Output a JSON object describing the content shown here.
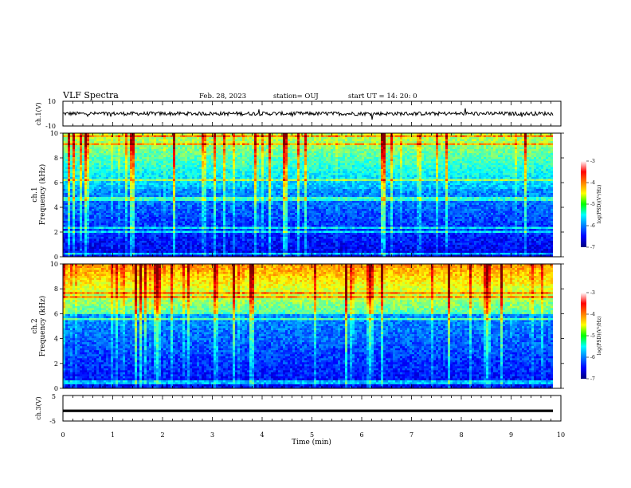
{
  "header": {
    "title": "VLF Spectra",
    "date": "Feb. 28, 2023",
    "station": "station= OUJ",
    "start": "start  UT =   14: 20: 0"
  },
  "chart_data": [
    {
      "type": "line",
      "ylabel": "ch.1(V)",
      "ylim": [
        -10,
        10
      ],
      "yticks": [
        "10",
        "-10"
      ],
      "xlim": [
        0,
        10
      ],
      "description_level": 0
    },
    {
      "type": "heatmap",
      "ylabel_1": "ch.1",
      "ylabel_2": "Frequency  (kHz)",
      "ylim": [
        0,
        10
      ],
      "yticks": [
        "10",
        "8",
        "6",
        "4",
        "2",
        "0"
      ],
      "xlim": [
        0,
        10
      ],
      "colorbar": {
        "label": "log(PSD)(V²/Hz)",
        "ticks": [
          "-3",
          "-4",
          "-5",
          "-6",
          "-7"
        ],
        "range": [
          -7,
          -3
        ]
      }
    },
    {
      "type": "heatmap",
      "ylabel_1": "ch.2",
      "ylabel_2": "Frequency  (kHz)",
      "ylim": [
        0,
        10
      ],
      "yticks": [
        "10",
        "8",
        "6",
        "4",
        "2",
        "0"
      ],
      "xlim": [
        0,
        10
      ],
      "colorbar": {
        "label": "log(PSD)(V²/Hz)",
        "ticks": [
          "-3",
          "-4",
          "-5",
          "-6",
          "-7"
        ],
        "range": [
          -7,
          -3
        ]
      }
    },
    {
      "type": "line",
      "ylabel": "ch.3(V)",
      "ylim": [
        -5,
        5
      ],
      "yticks": [
        "5",
        "-5"
      ],
      "xlim": [
        0,
        10
      ],
      "level": -1
    }
  ],
  "xaxis": {
    "label": "Time  (min)",
    "ticks": [
      "0",
      "1",
      "2",
      "3",
      "4",
      "5",
      "6",
      "7",
      "8",
      "9",
      "10"
    ]
  }
}
